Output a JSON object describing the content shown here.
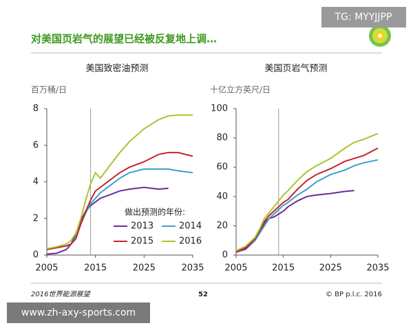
{
  "header": {
    "title": "对美国页岩气的展望已经被反复地上调…"
  },
  "watermark": {
    "top": "TG: MYYJJPP",
    "bottom": "www.zh-axy-sports.com"
  },
  "footer": {
    "left": "2016世界能源展望",
    "page": "52",
    "right": "© BP p.l.c. 2016"
  },
  "chart_data": [
    {
      "type": "line",
      "title": "美国致密油预测",
      "ylabel": "百万桶/日",
      "x": [
        2005,
        2007,
        2009,
        2010,
        2011,
        2012,
        2013,
        2014,
        2015,
        2016,
        2018,
        2020,
        2022,
        2025,
        2028,
        2030,
        2032,
        2035
      ],
      "xlim": [
        2005,
        2035
      ],
      "xticks": [
        2005,
        2015,
        2025,
        2035
      ],
      "ylim": [
        0,
        8
      ],
      "yticks": [
        0,
        2,
        4,
        6,
        8
      ],
      "vline": 2014,
      "legend": "lower right",
      "legend_title": "做出预测的年份:",
      "series": [
        {
          "name": "2013",
          "color": "#6a2c91",
          "values": [
            0.05,
            0.1,
            0.3,
            0.6,
            1.2,
            1.9,
            2.4,
            2.7,
            2.9,
            3.1,
            3.3,
            3.5,
            3.6,
            3.7,
            3.6,
            3.65,
            null,
            null
          ]
        },
        {
          "name": "2014",
          "color": "#3aa0c8",
          "values": [
            0.35,
            0.4,
            0.5,
            0.6,
            1.0,
            1.7,
            2.3,
            2.8,
            3.1,
            3.4,
            3.8,
            4.2,
            4.5,
            4.7,
            4.7,
            4.7,
            4.6,
            4.5
          ]
        },
        {
          "name": "2015",
          "color": "#c4242b",
          "values": [
            0.3,
            0.4,
            0.5,
            0.6,
            0.9,
            1.7,
            2.4,
            3.0,
            3.5,
            3.7,
            4.1,
            4.5,
            4.8,
            5.1,
            5.5,
            5.6,
            5.6,
            5.4
          ]
        },
        {
          "name": "2016",
          "color": "#a8c52a",
          "values": [
            0.35,
            0.45,
            0.6,
            0.8,
            1.2,
            2.0,
            3.0,
            3.9,
            4.5,
            4.2,
            4.9,
            5.6,
            6.2,
            6.9,
            7.4,
            7.6,
            7.65,
            7.65
          ]
        }
      ]
    },
    {
      "type": "line",
      "title": "美国页岩气预测",
      "ylabel": "十亿立方英尺/日",
      "x": [
        2005,
        2007,
        2009,
        2010,
        2011,
        2012,
        2013,
        2014,
        2015,
        2016,
        2018,
        2020,
        2022,
        2025,
        2028,
        2030,
        2032,
        2035
      ],
      "xlim": [
        2005,
        2035
      ],
      "xticks": [
        2005,
        2015,
        2025,
        2035
      ],
      "ylim": [
        0,
        100
      ],
      "yticks": [
        0,
        20,
        40,
        60,
        80,
        100
      ],
      "vline": 2014,
      "series": [
        {
          "name": "2013",
          "color": "#6a2c91",
          "values": [
            2,
            4,
            10,
            15,
            22,
            25,
            26,
            28,
            30,
            33,
            37,
            40,
            41,
            42,
            43.5,
            44,
            null,
            null
          ]
        },
        {
          "name": "2014",
          "color": "#3aa0c8",
          "values": [
            2,
            5,
            10,
            15,
            20,
            25,
            28,
            31,
            34,
            36,
            41,
            45,
            50,
            55,
            58,
            61,
            63,
            65
          ]
        },
        {
          "name": "2015",
          "color": "#c4242b",
          "values": [
            2,
            5,
            11,
            17,
            23,
            27,
            30,
            33,
            36,
            38,
            45,
            51,
            55,
            59,
            64,
            66,
            68,
            73
          ]
        },
        {
          "name": "2016",
          "color": "#a8c52a",
          "values": [
            3,
            6,
            12,
            18,
            25,
            29,
            33,
            37,
            41,
            44,
            51,
            57,
            61,
            66,
            73,
            77,
            79,
            83
          ]
        }
      ]
    }
  ]
}
